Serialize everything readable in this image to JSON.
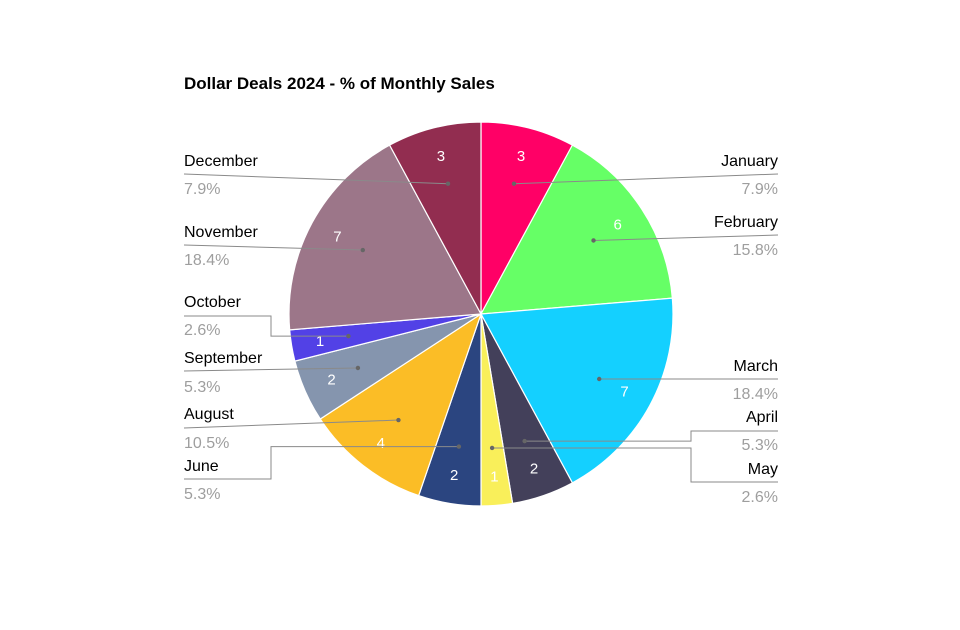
{
  "chart_data": {
    "type": "pie",
    "title": "Dollar Deals 2024 - % of Monthly Sales",
    "categories": [
      "January",
      "February",
      "March",
      "April",
      "May",
      "June",
      "August",
      "September",
      "October",
      "November",
      "December"
    ],
    "values": [
      3,
      6,
      7,
      2,
      1,
      2,
      4,
      2,
      1,
      7,
      3
    ],
    "value_labels": [
      "3",
      "6",
      "7",
      "2",
      "1",
      "2",
      "4",
      "2",
      "1",
      "7",
      "3"
    ],
    "percent_labels": [
      "7.9%",
      "15.8%",
      "18.4%",
      "5.3%",
      "2.6%",
      "5.3%",
      "10.5%",
      "5.3%",
      "2.6%",
      "18.4%",
      "7.9%"
    ],
    "colors": [
      "#ff0066",
      "#66ff66",
      "#14d0ff",
      "#43405a",
      "#f9ef5a",
      "#2b4580",
      "#fbbd26",
      "#8595ae",
      "#5241e6",
      "#9c7689",
      "#922d50"
    ],
    "legend": "outside-labels"
  }
}
